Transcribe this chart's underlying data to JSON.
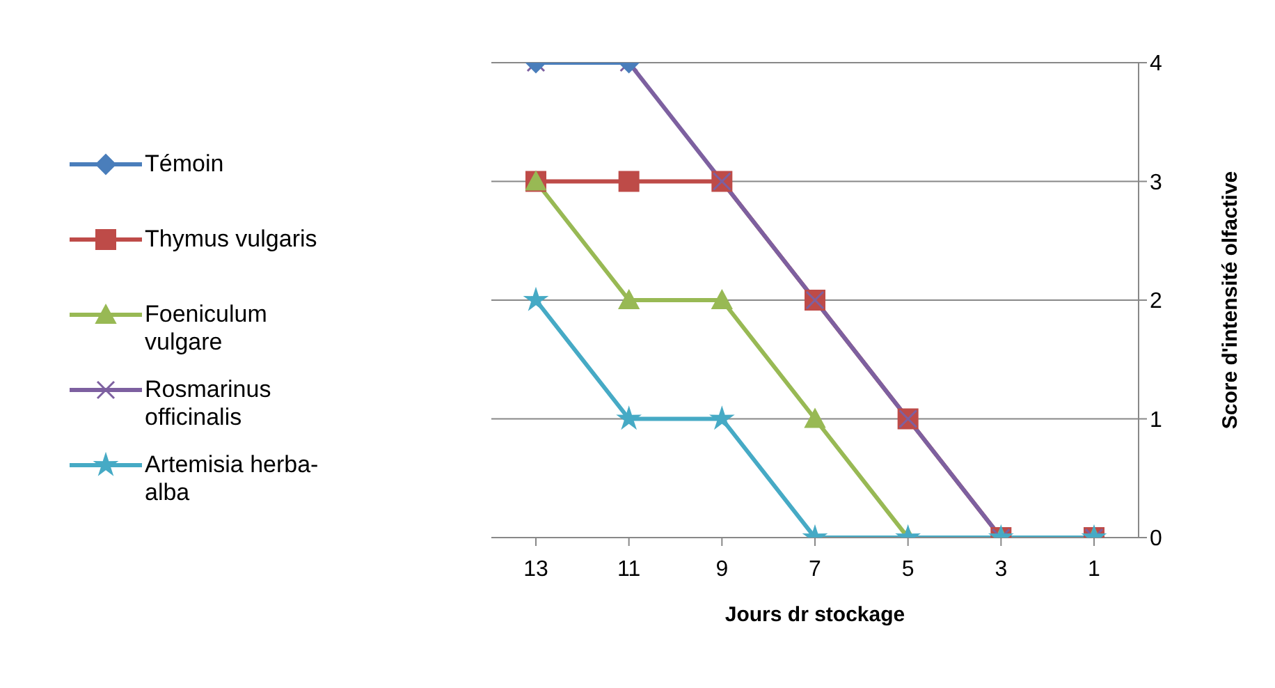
{
  "chart_data": {
    "type": "line",
    "xlabel": "Jours dr stockage",
    "ylabel": "Score d'intensité olfactive",
    "categories": [
      "13",
      "11",
      "9",
      "7",
      "5",
      "3",
      "1"
    ],
    "series": [
      {
        "name": "Témoin",
        "color": "#4a7ebb",
        "marker": "diamond",
        "values": [
          4,
          4,
          null,
          null,
          null,
          null,
          null
        ]
      },
      {
        "name": "Thymus vulgaris",
        "color": "#be4b48",
        "marker": "square",
        "values": [
          3,
          3,
          3,
          2,
          1,
          0,
          0
        ]
      },
      {
        "name": "Foeniculum vulgare",
        "color": "#98b954",
        "marker": "triangle",
        "values": [
          3,
          2,
          2,
          1,
          0,
          0,
          0
        ]
      },
      {
        "name": "Rosmarinus officinalis",
        "color": "#7d60a0",
        "marker": "cross",
        "values": [
          4,
          4,
          3,
          2,
          1,
          0,
          0
        ]
      },
      {
        "name": "Artemisia herba-alba",
        "color": "#46aac5",
        "marker": "star",
        "values": [
          2,
          1,
          1,
          0,
          0,
          0,
          0
        ]
      }
    ],
    "ylim": [
      0,
      4
    ],
    "yticks": [
      0,
      1,
      2,
      3,
      4
    ],
    "grid": "y",
    "legend": "left"
  }
}
